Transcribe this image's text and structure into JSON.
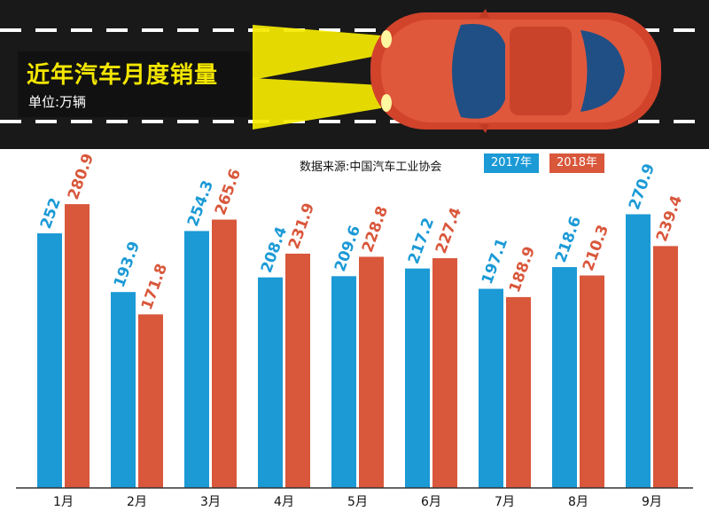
{
  "title": "近年汽车月度销量",
  "subtitle": "单位:万辆",
  "source": "数据来源:中国汽车工业协会",
  "colors": {
    "series_2017": "#1b9ad6",
    "series_2018": "#d9573b",
    "banner": "#191919",
    "title": "#f3e600"
  },
  "chart_data": {
    "type": "bar",
    "categories": [
      "1月",
      "2月",
      "3月",
      "4月",
      "5月",
      "6月",
      "7月",
      "8月",
      "9月"
    ],
    "series": [
      {
        "name": "2017年",
        "values": [
          252,
          193.9,
          254.3,
          208.4,
          209.6,
          217.2,
          197.1,
          218.6,
          270.9
        ]
      },
      {
        "name": "2018年",
        "values": [
          280.9,
          171.8,
          265.6,
          231.9,
          228.8,
          227.4,
          188.9,
          210.3,
          239.4
        ]
      }
    ],
    "value_labels": [
      [
        "252",
        "193.9",
        "254.3",
        "208.4",
        "209.6",
        "217.2",
        "197.1",
        "218.6",
        "270.9"
      ],
      [
        "280.9",
        "171.8",
        "265.6",
        "231.9",
        "228.8",
        "227.4",
        "188.9",
        "210.3",
        "239.4"
      ]
    ],
    "title": "近年汽车月度销量",
    "ylabel": "",
    "grid": false,
    "legend": "top-right"
  }
}
